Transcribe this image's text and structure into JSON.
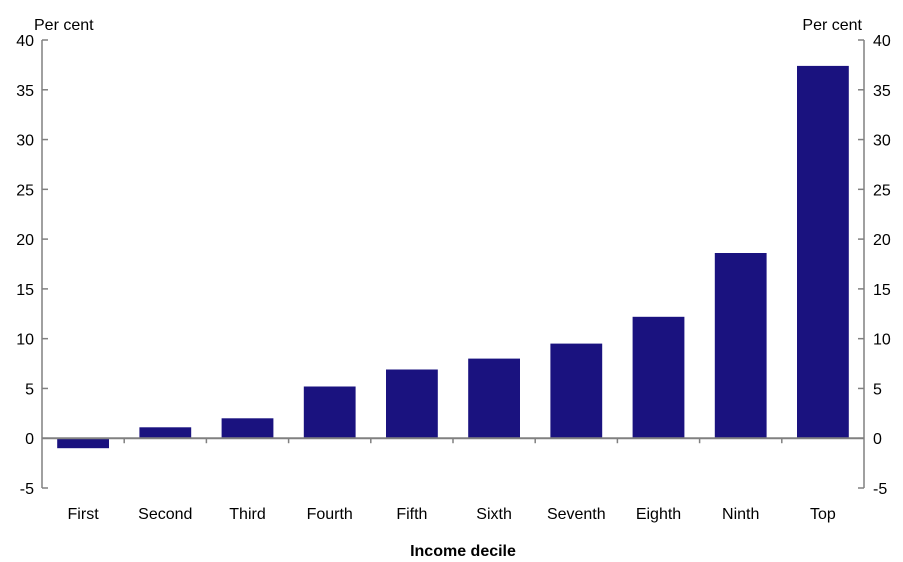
{
  "chart_data": {
    "type": "bar",
    "title": "",
    "xlabel": "Income decile",
    "ylabel_left": "Per cent",
    "ylabel_right": "Per cent",
    "ylim": [
      -5,
      40
    ],
    "yticks": [
      40,
      35,
      30,
      25,
      20,
      15,
      10,
      5,
      0,
      -5
    ],
    "grid": false,
    "legend": "none",
    "categories": [
      "First",
      "Second",
      "Third",
      "Fourth",
      "Fifth",
      "Sixth",
      "Seventh",
      "Eighth",
      "Ninth",
      "Top"
    ],
    "series": [
      {
        "values": [
          -1.0,
          1.1,
          2.0,
          5.2,
          6.9,
          8.0,
          9.5,
          12.2,
          18.6,
          37.4
        ]
      }
    ],
    "colors": {
      "bar": "#1A127F",
      "axis": "#808080",
      "text": "#000000"
    }
  }
}
